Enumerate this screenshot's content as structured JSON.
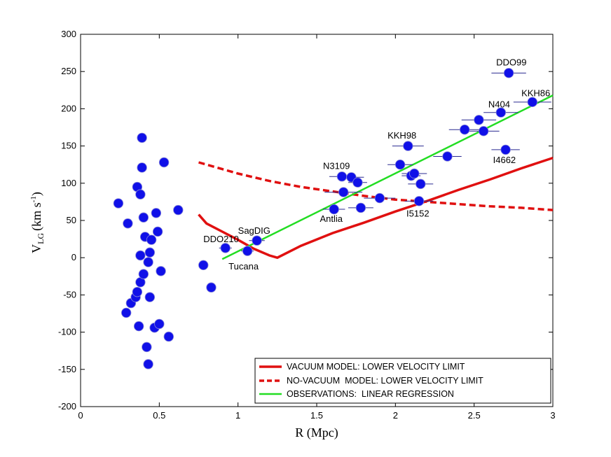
{
  "chart_data": {
    "type": "scatter",
    "xlabel": "R (Mpc)",
    "ylabel_main": "V",
    "ylabel_sub": "LG",
    "ylabel_unit": "(km s",
    "ylabel_exp": "-1",
    "ylabel_close": ")",
    "xlim": [
      0,
      3
    ],
    "ylim": [
      -200,
      300
    ],
    "xticks": [
      {
        "v": 0,
        "label": "0"
      },
      {
        "v": 0.5,
        "label": "0.5"
      },
      {
        "v": 1,
        "label": "1"
      },
      {
        "v": 1.5,
        "label": "1.5"
      },
      {
        "v": 2,
        "label": "2"
      },
      {
        "v": 2.5,
        "label": "2.5"
      },
      {
        "v": 3,
        "label": "3"
      }
    ],
    "yticks": [
      {
        "v": -200,
        "label": "-200"
      },
      {
        "v": -150,
        "label": "-150"
      },
      {
        "v": -100,
        "label": "-100"
      },
      {
        "v": -50,
        "label": "-50"
      },
      {
        "v": 0,
        "label": "0"
      },
      {
        "v": 50,
        "label": "50"
      },
      {
        "v": 100,
        "label": "100"
      },
      {
        "v": 150,
        "label": "150"
      },
      {
        "v": 200,
        "label": "200"
      },
      {
        "v": 250,
        "label": "250"
      },
      {
        "v": 300,
        "label": "300"
      }
    ],
    "colors": {
      "points": "#1010e8",
      "errorbars": "#2a2a90",
      "vacuum": "#e01010",
      "novacuum": "#e01010",
      "regression": "#22dd22"
    },
    "series": [
      {
        "name": "VACUUM MODEL: LOWER VELOCITY LIMIT",
        "style": "solid",
        "color": "#e01010",
        "x": [
          0.75,
          0.8,
          0.9,
          1.0,
          1.1,
          1.2,
          1.25,
          1.4,
          1.6,
          1.8,
          2.0,
          2.2,
          2.4,
          2.6,
          2.8,
          3.0
        ],
        "y": [
          58,
          46,
          35,
          24,
          12,
          3,
          0,
          16,
          33,
          47,
          62,
          76,
          91,
          105,
          120,
          134
        ]
      },
      {
        "name": "NO-VACUUM  MODEL: LOWER VELOCITY LIMIT",
        "style": "dashed",
        "color": "#e01010",
        "x": [
          0.75,
          0.9,
          1.0,
          1.1,
          1.2,
          1.3,
          1.4,
          1.6,
          1.8,
          2.0,
          2.2,
          2.4,
          2.6,
          2.8,
          3.0
        ],
        "y": [
          128,
          119,
          113,
          108,
          103,
          99,
          95,
          89,
          83,
          78,
          75,
          72,
          69,
          67,
          64
        ]
      },
      {
        "name": "OBSERVATIONS:  LINEAR REGRESSION",
        "style": "solid",
        "color": "#22dd22",
        "x": [
          0.9,
          3.0
        ],
        "y": [
          -2,
          218
        ]
      }
    ],
    "points": [
      {
        "x": 0.24,
        "y": 73
      },
      {
        "x": 0.29,
        "y": -74
      },
      {
        "x": 0.3,
        "y": 46
      },
      {
        "x": 0.32,
        "y": -61
      },
      {
        "x": 0.35,
        "y": -53
      },
      {
        "x": 0.36,
        "y": -46
      },
      {
        "x": 0.36,
        "y": 95
      },
      {
        "x": 0.37,
        "y": -92
      },
      {
        "x": 0.38,
        "y": 3
      },
      {
        "x": 0.38,
        "y": -33
      },
      {
        "x": 0.38,
        "y": 85
      },
      {
        "x": 0.39,
        "y": 121
      },
      {
        "x": 0.39,
        "y": 161
      },
      {
        "x": 0.4,
        "y": 54
      },
      {
        "x": 0.4,
        "y": -22
      },
      {
        "x": 0.41,
        "y": 28
      },
      {
        "x": 0.42,
        "y": -120
      },
      {
        "x": 0.43,
        "y": -143
      },
      {
        "x": 0.43,
        "y": -6
      },
      {
        "x": 0.44,
        "y": 7
      },
      {
        "x": 0.44,
        "y": -53
      },
      {
        "x": 0.45,
        "y": 24
      },
      {
        "x": 0.47,
        "y": -94
      },
      {
        "x": 0.48,
        "y": 60
      },
      {
        "x": 0.49,
        "y": 35
      },
      {
        "x": 0.5,
        "y": -89
      },
      {
        "x": 0.51,
        "y": -18
      },
      {
        "x": 0.53,
        "y": 128
      },
      {
        "x": 0.56,
        "y": -106
      },
      {
        "x": 0.62,
        "y": 64
      },
      {
        "x": 0.78,
        "y": -10,
        "err": 0.03
      },
      {
        "x": 0.83,
        "y": -40
      },
      {
        "x": 0.92,
        "y": 13,
        "err": 0.04
      },
      {
        "x": 1.06,
        "y": 9,
        "err": 0.04
      },
      {
        "x": 1.12,
        "y": 23,
        "err": 0.05
      },
      {
        "x": 1.61,
        "y": 65,
        "err": 0.07
      },
      {
        "x": 1.66,
        "y": 109,
        "err": 0.08
      },
      {
        "x": 1.67,
        "y": 88,
        "err": 0.12
      },
      {
        "x": 1.72,
        "y": 108,
        "err": 0.08
      },
      {
        "x": 1.76,
        "y": 101,
        "err": 0.06
      },
      {
        "x": 1.78,
        "y": 67,
        "err": 0.08
      },
      {
        "x": 1.9,
        "y": 80,
        "err": 0.1
      },
      {
        "x": 2.03,
        "y": 125,
        "err": 0.08
      },
      {
        "x": 2.08,
        "y": 150,
        "err": 0.1
      },
      {
        "x": 2.1,
        "y": 110,
        "err": 0.06
      },
      {
        "x": 2.12,
        "y": 113,
        "err": 0.08
      },
      {
        "x": 2.15,
        "y": 76,
        "err": 0.09
      },
      {
        "x": 2.16,
        "y": 99,
        "err": 0.08
      },
      {
        "x": 2.33,
        "y": 136,
        "err": 0.09
      },
      {
        "x": 2.44,
        "y": 172,
        "err": 0.1
      },
      {
        "x": 2.53,
        "y": 185,
        "err": 0.11
      },
      {
        "x": 2.56,
        "y": 170,
        "err": 0.1
      },
      {
        "x": 2.67,
        "y": 195,
        "err": 0.11
      },
      {
        "x": 2.7,
        "y": 145,
        "err": 0.09
      },
      {
        "x": 2.72,
        "y": 248,
        "err": 0.11
      },
      {
        "x": 2.87,
        "y": 209,
        "err": 0.12
      }
    ],
    "annotations": [
      {
        "text": "DDO99",
        "x": 2.64,
        "y": 258
      },
      {
        "text": "KKH86",
        "x": 2.8,
        "y": 217
      },
      {
        "text": "N404",
        "x": 2.59,
        "y": 202
      },
      {
        "text": "KKH98",
        "x": 1.95,
        "y": 160
      },
      {
        "text": "I4662",
        "x": 2.62,
        "y": 127
      },
      {
        "text": "N3109",
        "x": 1.54,
        "y": 119
      },
      {
        "text": "I5152",
        "x": 2.07,
        "y": 55
      },
      {
        "text": "Antlia",
        "x": 1.52,
        "y": 48
      },
      {
        "text": "SagDIG",
        "x": 1.0,
        "y": 32
      },
      {
        "text": "DDO210",
        "x": 0.78,
        "y": 21
      },
      {
        "text": "Tucana",
        "x": 0.94,
        "y": -16
      }
    ],
    "legend_position": "bottom-right"
  }
}
